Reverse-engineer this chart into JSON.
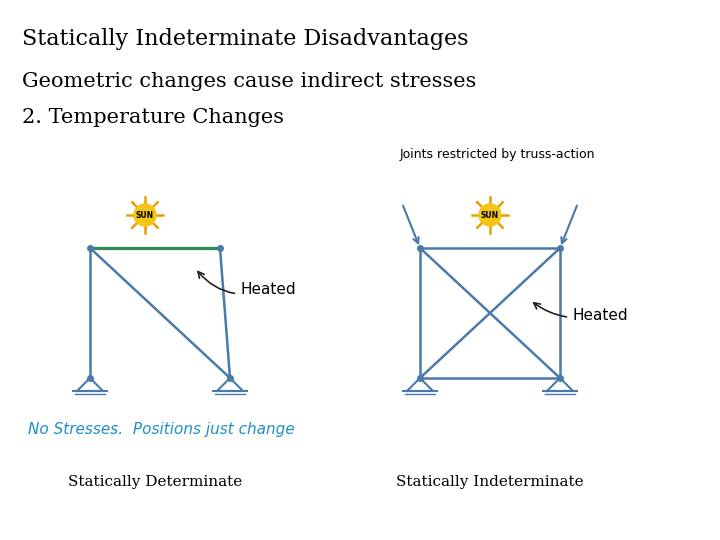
{
  "title": "Statically Indeterminate Disadvantages",
  "subtitle1": "Geometric changes cause indirect stresses",
  "subtitle2": "2. Temperature Changes",
  "annotation_right": "Joints restricted by truss-action",
  "no_stress_text": "No Stresses.  Positions just change",
  "label_det": "Statically Determinate",
  "label_indet": "Statically Indeterminate",
  "heated_label": "Heated",
  "sun_label": "SUN",
  "bg_color": "#ffffff",
  "truss_color": "#4a7aab",
  "green_color": "#2e8b57",
  "sun_body_color": "#f5c518",
  "sun_ray_color": "#e8a000",
  "no_stress_color": "#1e90c8",
  "title_fontsize": 16,
  "subtitle1_fontsize": 15,
  "subtitle2_fontsize": 15,
  "label_fontsize": 11,
  "heated_fontsize": 11,
  "ann_fontsize": 9,
  "no_stress_fontsize": 11
}
